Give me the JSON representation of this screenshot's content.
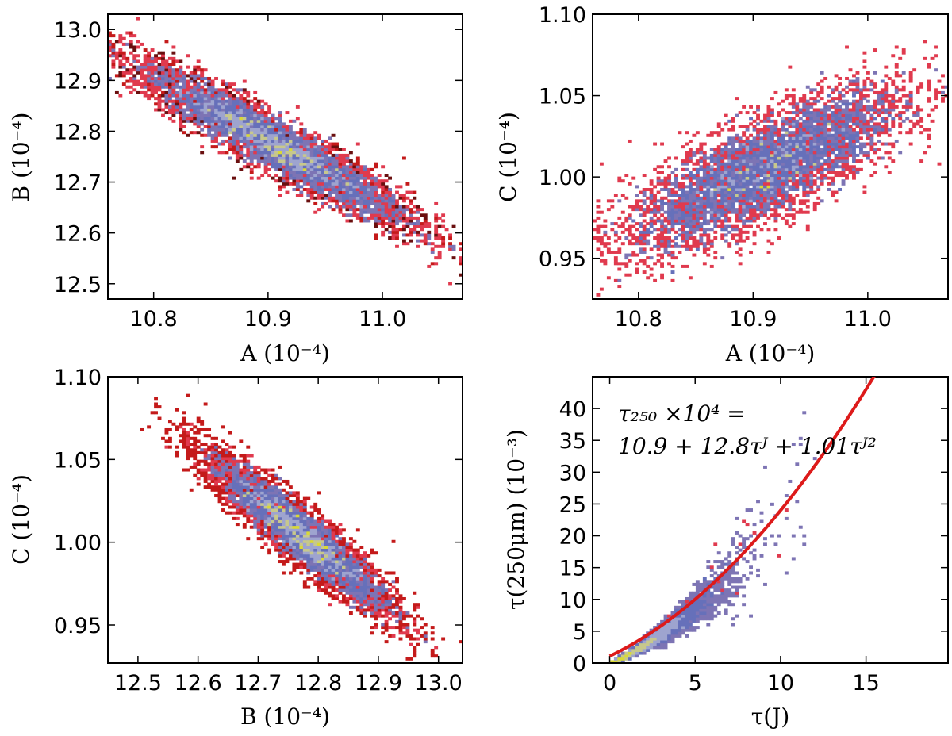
{
  "chart_data": [
    {
      "id": "p1",
      "type": "heatmap",
      "title": "",
      "xlabel": "A (10⁻⁴)",
      "ylabel": "B (10⁻⁴)",
      "xlim": [
        10.76,
        11.07
      ],
      "ylim": [
        12.47,
        13.03
      ],
      "xticks": [
        10.8,
        10.9,
        11.0
      ],
      "xticklabels": [
        "10.8",
        "10.9",
        "11.0"
      ],
      "yticks": [
        12.5,
        12.6,
        12.7,
        12.8,
        12.9,
        13.0
      ],
      "yticklabels": [
        "12.5",
        "12.6",
        "12.7",
        "12.8",
        "12.9",
        "13.0"
      ],
      "center": [
        10.905,
        12.775
      ],
      "sigma": [
        0.06,
        0.08
      ],
      "correlation": -0.94
    },
    {
      "id": "p2",
      "type": "heatmap",
      "title": "",
      "xlabel": "A (10⁻⁴)",
      "ylabel": "C (10⁻⁴)",
      "xlim": [
        10.76,
        11.07
      ],
      "ylim": [
        0.925,
        1.1
      ],
      "xticks": [
        10.8,
        10.9,
        11.0
      ],
      "xticklabels": [
        "10.8",
        "10.9",
        "11.0"
      ],
      "yticks": [
        0.95,
        1.0,
        1.05,
        1.1
      ],
      "yticklabels": [
        "0.95",
        "1.00",
        "1.05",
        "1.10"
      ],
      "center": [
        10.91,
        1.005
      ],
      "sigma": [
        0.06,
        0.025
      ],
      "correlation": 0.78
    },
    {
      "id": "p3",
      "type": "heatmap",
      "title": "",
      "xlabel": "B (10⁻⁴)",
      "ylabel": "C (10⁻⁴)",
      "xlim": [
        12.45,
        13.04
      ],
      "ylim": [
        0.927,
        1.1
      ],
      "xticks": [
        12.5,
        12.6,
        12.7,
        12.8,
        12.9,
        13.0
      ],
      "xticklabels": [
        "12.5",
        "12.6",
        "12.7",
        "12.8",
        "12.9",
        "13.0"
      ],
      "yticks": [
        0.95,
        1.0,
        1.05,
        1.1
      ],
      "yticklabels": [
        "0.95",
        "1.00",
        "1.05",
        "1.10"
      ],
      "center": [
        12.77,
        1.005
      ],
      "sigma": [
        0.08,
        0.025
      ],
      "correlation": -0.93
    },
    {
      "id": "p4",
      "type": "heatmap",
      "title": "",
      "xlabel": "τ(J)",
      "ylabel": "τ(250μm) (10⁻³)",
      "xlim": [
        -1,
        19.8
      ],
      "ylim": [
        0,
        45
      ],
      "xticks": [
        0,
        5,
        10,
        15
      ],
      "xticklabels": [
        "0",
        "5",
        "10",
        "15"
      ],
      "yticks": [
        0,
        5,
        10,
        15,
        20,
        25,
        30,
        35,
        40
      ],
      "yticklabels": [
        "0",
        "5",
        "10",
        "15",
        "20",
        "25",
        "30",
        "35",
        "40"
      ],
      "fit": {
        "a": 10.9,
        "b": 12.8,
        "c": 1.01,
        "color": "#dd1a1a",
        "x_range": [
          0,
          19.8
        ]
      },
      "annotation": {
        "line1": "τ₂₅₀ ×10⁴  =",
        "line2": "10.9  +  12.8τᴶ  +  1.01τᴶ²"
      }
    }
  ],
  "colors": {
    "colormap": [
      "#000000",
      "#6a0f0f",
      "#c41a1a",
      "#e03a4e",
      "#7d74b4",
      "#6670ba",
      "#9ea4cf",
      "#c7c88c",
      "#d9d935"
    ],
    "fit_line": "#dd1a1a"
  }
}
